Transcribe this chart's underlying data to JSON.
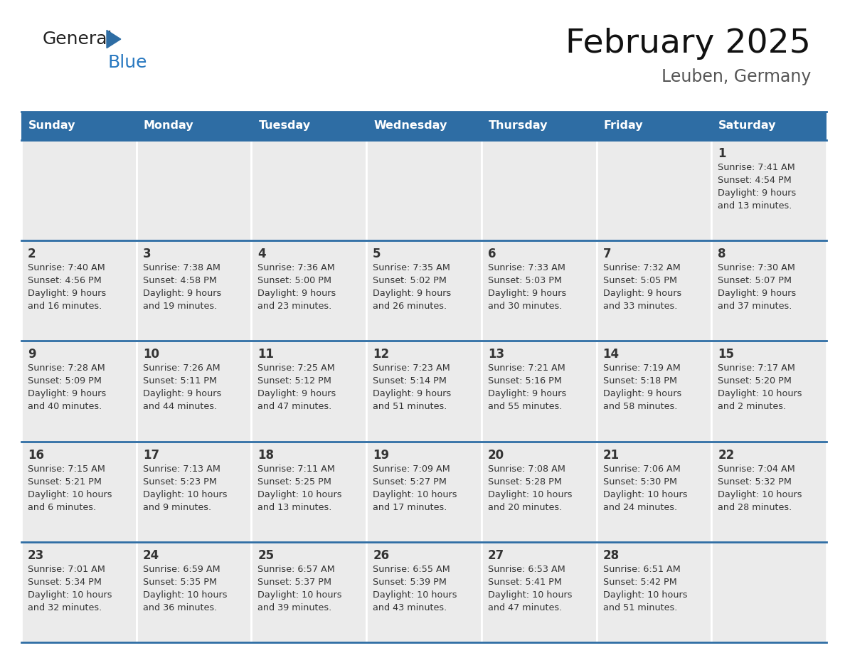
{
  "title": "February 2025",
  "subtitle": "Leuben, Germany",
  "days_of_week": [
    "Sunday",
    "Monday",
    "Tuesday",
    "Wednesday",
    "Thursday",
    "Friday",
    "Saturday"
  ],
  "header_bg": "#2E6DA4",
  "header_text": "#FFFFFF",
  "cell_bg": "#EBEBEB",
  "cell_border": "#FFFFFF",
  "border_color": "#2E6DA4",
  "day_number_color": "#333333",
  "text_color": "#333333",
  "logo_general_color": "#222222",
  "logo_blue_color": "#2878C0",
  "logo_triangle_color": "#2E6DA4",
  "title_color": "#111111",
  "subtitle_color": "#555555",
  "calendar_data": [
    [
      {
        "day": null,
        "info": ""
      },
      {
        "day": null,
        "info": ""
      },
      {
        "day": null,
        "info": ""
      },
      {
        "day": null,
        "info": ""
      },
      {
        "day": null,
        "info": ""
      },
      {
        "day": null,
        "info": ""
      },
      {
        "day": 1,
        "info": "Sunrise: 7:41 AM\nSunset: 4:54 PM\nDaylight: 9 hours\nand 13 minutes."
      }
    ],
    [
      {
        "day": 2,
        "info": "Sunrise: 7:40 AM\nSunset: 4:56 PM\nDaylight: 9 hours\nand 16 minutes."
      },
      {
        "day": 3,
        "info": "Sunrise: 7:38 AM\nSunset: 4:58 PM\nDaylight: 9 hours\nand 19 minutes."
      },
      {
        "day": 4,
        "info": "Sunrise: 7:36 AM\nSunset: 5:00 PM\nDaylight: 9 hours\nand 23 minutes."
      },
      {
        "day": 5,
        "info": "Sunrise: 7:35 AM\nSunset: 5:02 PM\nDaylight: 9 hours\nand 26 minutes."
      },
      {
        "day": 6,
        "info": "Sunrise: 7:33 AM\nSunset: 5:03 PM\nDaylight: 9 hours\nand 30 minutes."
      },
      {
        "day": 7,
        "info": "Sunrise: 7:32 AM\nSunset: 5:05 PM\nDaylight: 9 hours\nand 33 minutes."
      },
      {
        "day": 8,
        "info": "Sunrise: 7:30 AM\nSunset: 5:07 PM\nDaylight: 9 hours\nand 37 minutes."
      }
    ],
    [
      {
        "day": 9,
        "info": "Sunrise: 7:28 AM\nSunset: 5:09 PM\nDaylight: 9 hours\nand 40 minutes."
      },
      {
        "day": 10,
        "info": "Sunrise: 7:26 AM\nSunset: 5:11 PM\nDaylight: 9 hours\nand 44 minutes."
      },
      {
        "day": 11,
        "info": "Sunrise: 7:25 AM\nSunset: 5:12 PM\nDaylight: 9 hours\nand 47 minutes."
      },
      {
        "day": 12,
        "info": "Sunrise: 7:23 AM\nSunset: 5:14 PM\nDaylight: 9 hours\nand 51 minutes."
      },
      {
        "day": 13,
        "info": "Sunrise: 7:21 AM\nSunset: 5:16 PM\nDaylight: 9 hours\nand 55 minutes."
      },
      {
        "day": 14,
        "info": "Sunrise: 7:19 AM\nSunset: 5:18 PM\nDaylight: 9 hours\nand 58 minutes."
      },
      {
        "day": 15,
        "info": "Sunrise: 7:17 AM\nSunset: 5:20 PM\nDaylight: 10 hours\nand 2 minutes."
      }
    ],
    [
      {
        "day": 16,
        "info": "Sunrise: 7:15 AM\nSunset: 5:21 PM\nDaylight: 10 hours\nand 6 minutes."
      },
      {
        "day": 17,
        "info": "Sunrise: 7:13 AM\nSunset: 5:23 PM\nDaylight: 10 hours\nand 9 minutes."
      },
      {
        "day": 18,
        "info": "Sunrise: 7:11 AM\nSunset: 5:25 PM\nDaylight: 10 hours\nand 13 minutes."
      },
      {
        "day": 19,
        "info": "Sunrise: 7:09 AM\nSunset: 5:27 PM\nDaylight: 10 hours\nand 17 minutes."
      },
      {
        "day": 20,
        "info": "Sunrise: 7:08 AM\nSunset: 5:28 PM\nDaylight: 10 hours\nand 20 minutes."
      },
      {
        "day": 21,
        "info": "Sunrise: 7:06 AM\nSunset: 5:30 PM\nDaylight: 10 hours\nand 24 minutes."
      },
      {
        "day": 22,
        "info": "Sunrise: 7:04 AM\nSunset: 5:32 PM\nDaylight: 10 hours\nand 28 minutes."
      }
    ],
    [
      {
        "day": 23,
        "info": "Sunrise: 7:01 AM\nSunset: 5:34 PM\nDaylight: 10 hours\nand 32 minutes."
      },
      {
        "day": 24,
        "info": "Sunrise: 6:59 AM\nSunset: 5:35 PM\nDaylight: 10 hours\nand 36 minutes."
      },
      {
        "day": 25,
        "info": "Sunrise: 6:57 AM\nSunset: 5:37 PM\nDaylight: 10 hours\nand 39 minutes."
      },
      {
        "day": 26,
        "info": "Sunrise: 6:55 AM\nSunset: 5:39 PM\nDaylight: 10 hours\nand 43 minutes."
      },
      {
        "day": 27,
        "info": "Sunrise: 6:53 AM\nSunset: 5:41 PM\nDaylight: 10 hours\nand 47 minutes."
      },
      {
        "day": 28,
        "info": "Sunrise: 6:51 AM\nSunset: 5:42 PM\nDaylight: 10 hours\nand 51 minutes."
      },
      {
        "day": null,
        "info": ""
      }
    ]
  ]
}
